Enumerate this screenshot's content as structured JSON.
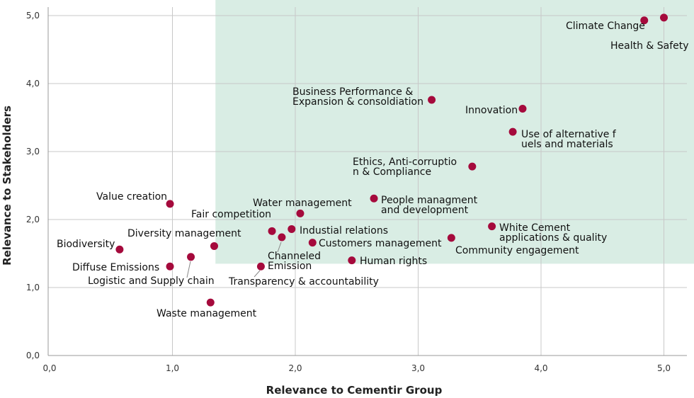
{
  "chart_data": {
    "type": "scatter",
    "title": "",
    "xlabel": "Relevance to Cementir Group",
    "ylabel": "Relevance to Stakeholders",
    "xlim": [
      0,
      5.2
    ],
    "ylim": [
      0,
      5.2
    ],
    "xticks": [
      "0,0",
      "1,0",
      "2,0",
      "3,0",
      "4,0",
      "5,0"
    ],
    "yticks": [
      "0,0",
      "1,0",
      "2,0",
      "3,0",
      "4,0",
      "5,0"
    ],
    "grid": true,
    "marker_color": "#a50a3c",
    "highlight_region": {
      "x_from": 1.35,
      "y_from": 1.35,
      "color": "#d9ede4"
    },
    "points": [
      {
        "name": "Health & Safety",
        "x": 5.0,
        "y": 4.97
      },
      {
        "name": "Climate Change",
        "x": 4.84,
        "y": 4.93
      },
      {
        "name": "Business Performance & Expansion & consoldiation",
        "x": 3.11,
        "y": 3.76
      },
      {
        "name": "Innovation",
        "x": 3.85,
        "y": 3.63
      },
      {
        "name": "Use of alternative fuels and materials",
        "x": 3.77,
        "y": 3.29
      },
      {
        "name": "Ethics, Anti-corruption & Compliance",
        "x": 3.44,
        "y": 2.78
      },
      {
        "name": "People managment and development",
        "x": 2.64,
        "y": 2.31
      },
      {
        "name": "Value creation",
        "x": 0.98,
        "y": 2.23
      },
      {
        "name": "Water management",
        "x": 2.04,
        "y": 2.09
      },
      {
        "name": "White Cement applications & quality",
        "x": 3.6,
        "y": 1.9
      },
      {
        "name": "Fair competition",
        "x": 1.81,
        "y": 1.83
      },
      {
        "name": "Industial relations",
        "x": 1.97,
        "y": 1.86
      },
      {
        "name": "Channeled Emission",
        "x": 1.89,
        "y": 1.74
      },
      {
        "name": "Customers management",
        "x": 2.14,
        "y": 1.66
      },
      {
        "name": "Community engagement",
        "x": 3.27,
        "y": 1.73
      },
      {
        "name": "Diversity management",
        "x": 1.34,
        "y": 1.61
      },
      {
        "name": "Biodiversity",
        "x": 0.57,
        "y": 1.56
      },
      {
        "name": "Logistic and Supply chain",
        "x": 1.15,
        "y": 1.45
      },
      {
        "name": "Human rights",
        "x": 2.46,
        "y": 1.4
      },
      {
        "name": "Diffuse Emissions",
        "x": 0.98,
        "y": 1.31
      },
      {
        "name": "Transparency & accountability",
        "x": 1.72,
        "y": 1.31
      },
      {
        "name": "Waste management",
        "x": 1.31,
        "y": 0.78
      }
    ]
  }
}
